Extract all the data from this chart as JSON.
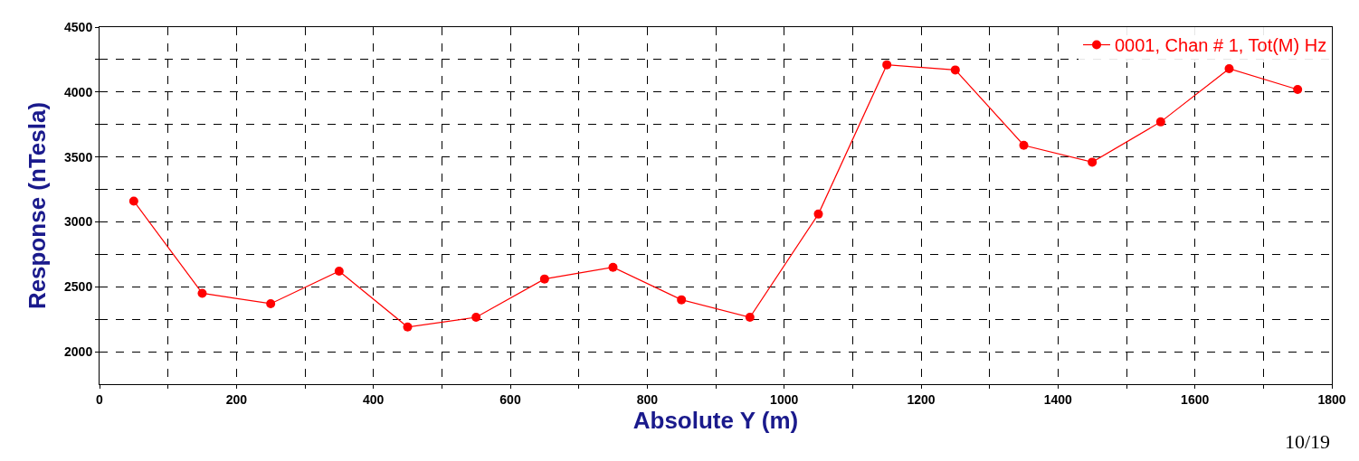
{
  "chart_data": {
    "type": "line",
    "xlabel": "Absolute Y (m)",
    "ylabel": "Response (nTesla)",
    "x": [
      50,
      150,
      250,
      350,
      450,
      550,
      650,
      750,
      850,
      950,
      1050,
      1150,
      1250,
      1350,
      1450,
      1550,
      1650,
      1750
    ],
    "series": [
      {
        "name": "0001, Chan # 1, Tot(M) Hz",
        "color": "#ff0000",
        "values": [
          3160,
          2450,
          2370,
          2620,
          2190,
          2265,
          2560,
          2650,
          2400,
          2265,
          3060,
          4210,
          4170,
          3590,
          3460,
          3770,
          4180,
          4020
        ]
      }
    ],
    "xlim": [
      0,
      1800
    ],
    "xticks": [
      0,
      {
        "value": 100,
        "label": null
      },
      200,
      {
        "value": 300,
        "label": null
      },
      400,
      {
        "value": 500,
        "label": null
      },
      600,
      {
        "value": 700,
        "label": null
      },
      800,
      {
        "value": 900,
        "label": null
      },
      1000,
      {
        "value": 1100,
        "label": null
      },
      1200,
      {
        "value": 1300,
        "label": null
      },
      1400,
      {
        "value": 1500,
        "label": null
      },
      1600,
      {
        "value": 1700,
        "label": null
      },
      1800
    ],
    "ylim": [
      1750,
      4500
    ],
    "yticks": [
      2000,
      {
        "value": 2250,
        "label": null
      },
      2500,
      {
        "value": 2750,
        "label": null
      },
      3000,
      {
        "value": 3250,
        "label": null
      },
      3500,
      {
        "value": 3750,
        "label": null
      },
      4000,
      {
        "value": 4250,
        "label": null
      },
      4500
    ],
    "grid": true,
    "legend": "top right",
    "marker": "circle",
    "line_style": "solid",
    "annotations": [
      "10/19"
    ]
  }
}
